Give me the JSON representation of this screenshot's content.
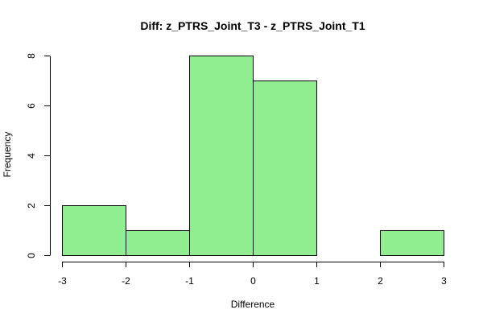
{
  "chart_data": {
    "type": "bar",
    "title": "Diff: z_PTRS_Joint_T3 - z_PTRS_Joint_T1",
    "xlabel": "Difference",
    "ylabel": "Frequency",
    "bins": [
      {
        "from": -3,
        "to": -2,
        "count": 2
      },
      {
        "from": -2,
        "to": -1,
        "count": 1
      },
      {
        "from": -1,
        "to": 0,
        "count": 8
      },
      {
        "from": 0,
        "to": 1,
        "count": 7
      },
      {
        "from": 1,
        "to": 2,
        "count": 0
      },
      {
        "from": 2,
        "to": 3,
        "count": 1
      }
    ],
    "xlim": [
      -3,
      3
    ],
    "ylim": [
      0,
      8
    ],
    "x_ticks": [
      -3,
      -2,
      -1,
      0,
      1,
      2,
      3
    ],
    "y_ticks": [
      0,
      2,
      4,
      6,
      8
    ],
    "x_tick_labels": [
      "-3",
      "-2",
      "-1",
      "0",
      "1",
      "2",
      "3"
    ],
    "y_tick_labels": [
      "0",
      "2",
      "4",
      "6",
      "8"
    ],
    "grid": false,
    "bar_color": "#90EE90",
    "bar_border_color": "#000000"
  }
}
